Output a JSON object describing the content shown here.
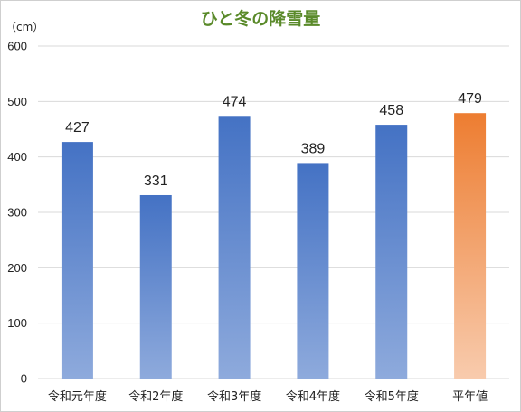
{
  "chart_data": {
    "type": "bar",
    "title": "ひと冬の降雪量",
    "unit_label": "（cm）",
    "categories": [
      "令和元年度",
      "令和2年度",
      "令和3年度",
      "令和4年度",
      "令和5年度",
      "平年値"
    ],
    "values": [
      427,
      331,
      474,
      389,
      458,
      479
    ],
    "data_labels": [
      "427",
      "331",
      "474",
      "389",
      "458",
      "479"
    ],
    "yticks": [
      "0",
      "100",
      "200",
      "300",
      "400",
      "500",
      "600"
    ],
    "ylim": [
      0,
      600
    ],
    "grid": true,
    "legend": false,
    "colors": {
      "title": "#5a8a2a",
      "bar_top": "#4472c4",
      "bar_bottom": "#8eaadc",
      "highlight_top": "#ed7d31",
      "highlight_bottom": "#f8cbad",
      "grid": "#d9d9d9"
    },
    "highlight_index": 5
  }
}
